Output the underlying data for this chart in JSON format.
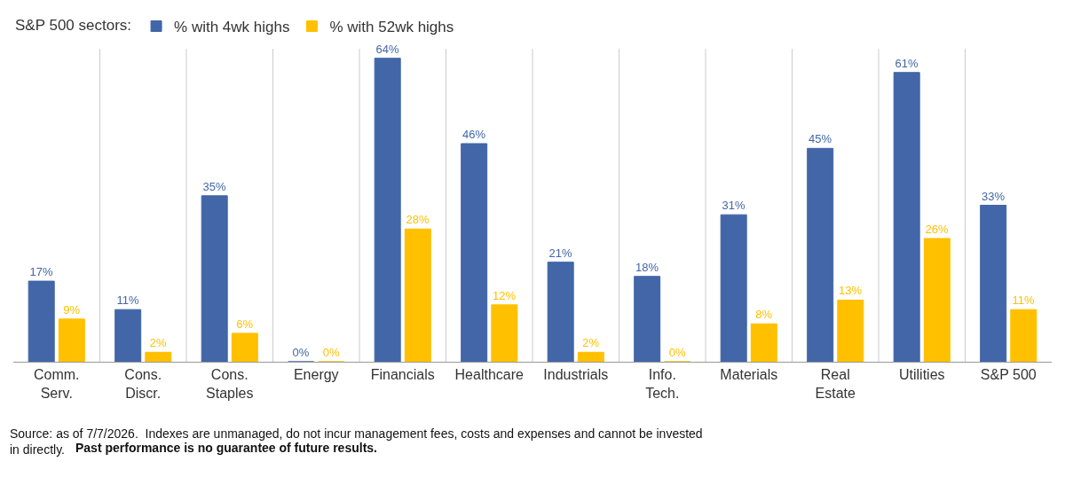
{
  "chart_data": {
    "type": "bar",
    "legend_title": "S&P 500 sectors:",
    "categories": [
      "Comm.\nServ.",
      "Cons.\nDiscr.",
      "Cons.\nStaples",
      "Energy",
      "Financials",
      "Healthcare",
      "Industrials",
      "Info.\nTech.",
      "Materials",
      "Real\nEstate",
      "Utilities",
      "S&P 500"
    ],
    "series": [
      {
        "name": "% with 4wk highs",
        "color": "#4266a8",
        "values": [
          17,
          11,
          35,
          0,
          64,
          46,
          21,
          18,
          31,
          45,
          61,
          33
        ],
        "value_labels": [
          "17%",
          "11%",
          "35%",
          "0%",
          "64%",
          "46%",
          "21%",
          "18%",
          "31%",
          "45%",
          "61%",
          "33%"
        ]
      },
      {
        "name": "% with 52wk highs",
        "color": "#ffc000",
        "values": [
          9,
          2,
          6,
          0,
          28,
          12,
          2,
          0,
          8,
          13,
          26,
          11
        ],
        "value_labels": [
          "9%",
          "2%",
          "6%",
          "0%",
          "28%",
          "12%",
          "2%",
          "0%",
          "8%",
          "13%",
          "26%",
          "11%"
        ]
      }
    ],
    "ylim": [
      0,
      66
    ],
    "tick_labels": "x",
    "grid": "x",
    "legend": "top left",
    "annotations": [
      "Source: as of 7/7/2026.  Indexes are unmanaged, do not incur management fees, costs and expenses and cannot be invested\nin directly.",
      "Past performance is no guarantee of future results."
    ]
  }
}
